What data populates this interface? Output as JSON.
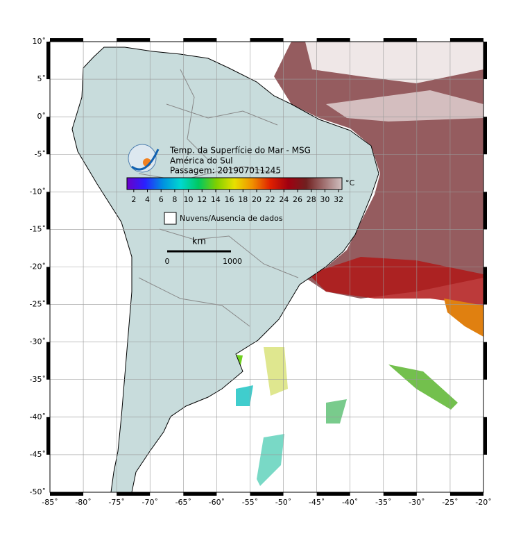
{
  "header": {
    "lines": [
      "Temp. da Superfície do Mar - MSG",
      "América do Sul",
      "Passagem: 201907011245"
    ]
  },
  "colorbar": {
    "lim": [
      1,
      32.5
    ],
    "ticks": [
      2,
      4,
      6,
      8,
      10,
      12,
      14,
      16,
      18,
      20,
      22,
      24,
      26,
      28,
      30,
      32
    ],
    "unit": "°C",
    "colors": [
      "#6a00c8",
      "#2a20ff",
      "#0090e0",
      "#00d8d0",
      "#00c860",
      "#80d000",
      "#e8e000",
      "#f09000",
      "#e02000",
      "#a00010",
      "#702020",
      "#a07070",
      "#d0c0c0"
    ]
  },
  "legend": "Nuvens/Ausencia de dados",
  "scale_bar": {
    "unit": "km",
    "labels": [
      "0",
      "1000"
    ]
  },
  "map": {
    "lonlim": [
      -85,
      -20
    ],
    "latlim": [
      -50,
      10
    ],
    "lon_ticks": [
      {
        "value": -85,
        "label": "-85˚"
      },
      {
        "value": -80,
        "label": "-80˚"
      },
      {
        "value": -75,
        "label": "-75˚"
      },
      {
        "value": -70,
        "label": "-70˚"
      },
      {
        "value": -65,
        "label": "-65˚"
      },
      {
        "value": -60,
        "label": "-60˚"
      },
      {
        "value": -55,
        "label": "-55˚"
      },
      {
        "value": -50,
        "label": "-50˚"
      },
      {
        "value": -45,
        "label": "-45˚"
      },
      {
        "value": -40,
        "label": "-40˚"
      },
      {
        "value": -35,
        "label": "-35˚"
      },
      {
        "value": -30,
        "label": "-30˚"
      },
      {
        "value": -25,
        "label": "-25˚"
      },
      {
        "value": -20,
        "label": "-20˚"
      }
    ],
    "lat_ticks": [
      {
        "value": 10,
        "label": "10˚"
      },
      {
        "value": 5,
        "label": "5˚"
      },
      {
        "value": 0,
        "label": "0˚"
      },
      {
        "value": -5,
        "label": "-5˚"
      },
      {
        "value": -10,
        "label": "-10˚"
      },
      {
        "value": -15,
        "label": "-15˚"
      },
      {
        "value": -20,
        "label": "-20˚"
      },
      {
        "value": -25,
        "label": "-25˚"
      },
      {
        "value": -30,
        "label": "-30˚"
      },
      {
        "value": -35,
        "label": "-35˚"
      },
      {
        "value": -40,
        "label": "-40˚"
      },
      {
        "value": -45,
        "label": "-45˚"
      },
      {
        "value": -50,
        "label": "-50˚"
      }
    ]
  }
}
